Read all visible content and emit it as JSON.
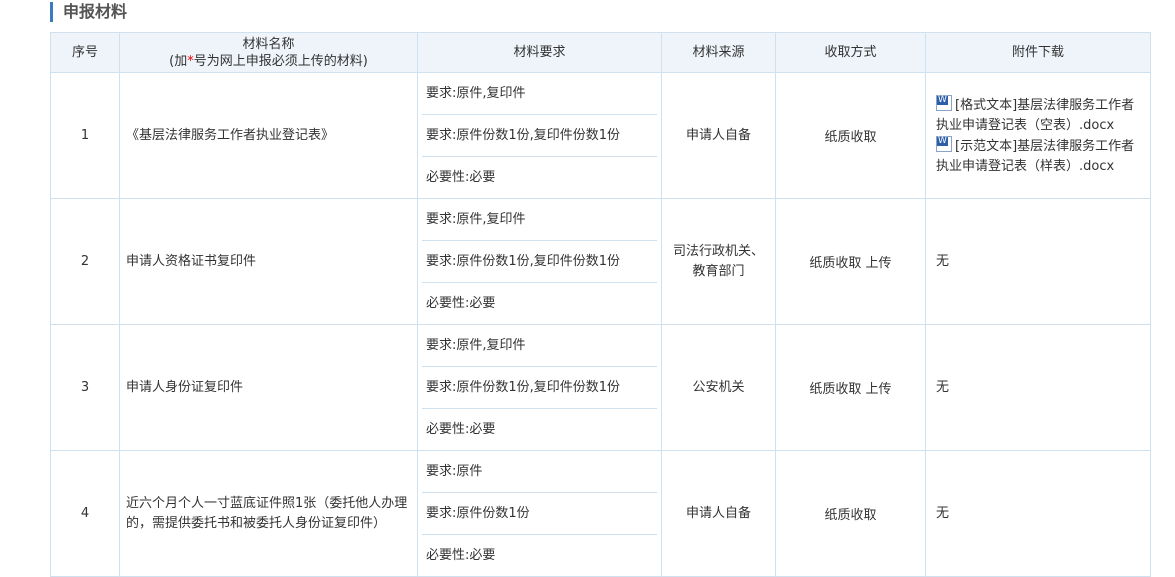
{
  "section_title": "申报材料",
  "headers": {
    "index": "序号",
    "name": "材料名称",
    "name_note_pre": "(加",
    "name_note_star": "*",
    "name_note_post": "号为网上申报必须上传的材料)",
    "requirements": "材料要求",
    "source": "材料来源",
    "method": "收取方式",
    "attachments": "附件下载"
  },
  "rows": [
    {
      "index": "1",
      "name": "《基层法律服务工作者执业登记表》",
      "requirements": [
        "要求:原件,复印件",
        "要求:原件份数1份,复印件份数1份",
        "必要性:必要"
      ],
      "source": "申请人自备",
      "method": "纸质收取",
      "attachments": [
        "[格式文本]基层法律服务工作者执业申请登记表（空表）.docx",
        "[示范文本]基层法律服务工作者执业申请登记表（样表）.docx"
      ]
    },
    {
      "index": "2",
      "name": "申请人资格证书复印件",
      "requirements": [
        "要求:原件,复印件",
        "要求:原件份数1份,复印件份数1份",
        "必要性:必要"
      ],
      "source": "司法行政机关、教育部门",
      "method": "纸质收取 上传",
      "attachment_text": "无"
    },
    {
      "index": "3",
      "name": "申请人身份证复印件",
      "requirements": [
        "要求:原件,复印件",
        "要求:原件份数1份,复印件份数1份",
        "必要性:必要"
      ],
      "source": "公安机关",
      "method": "纸质收取 上传",
      "attachment_text": "无"
    },
    {
      "index": "4",
      "name": "近六个月个人一寸蓝底证件照1张（委托他人办理的，需提供委托书和被委托人身份证复印件）",
      "requirements": [
        "要求:原件",
        "要求:原件份数1份",
        "必要性:必要"
      ],
      "source": "申请人自备",
      "method": "纸质收取",
      "attachment_text": "无"
    }
  ]
}
